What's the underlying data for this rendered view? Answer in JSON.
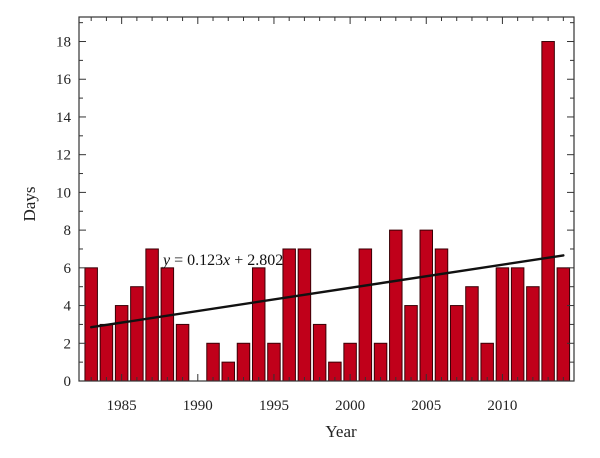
{
  "chart_data": {
    "type": "bar",
    "x": [
      1983,
      1984,
      1985,
      1986,
      1987,
      1988,
      1989,
      1990,
      1991,
      1992,
      1993,
      1994,
      1995,
      1996,
      1997,
      1998,
      1999,
      2000,
      2001,
      2002,
      2003,
      2004,
      2005,
      2006,
      2007,
      2008,
      2009,
      2010,
      2011,
      2012,
      2013,
      2014
    ],
    "values": [
      6,
      3,
      4,
      5,
      7,
      6,
      3,
      0,
      2,
      1,
      2,
      6,
      2,
      7,
      7,
      3,
      1,
      2,
      7,
      2,
      8,
      4,
      8,
      7,
      4,
      5,
      2,
      6,
      6,
      5,
      18,
      6
    ],
    "xlabel": "Year",
    "ylabel": "Days",
    "xlim": [
      1982.2,
      2014.7
    ],
    "ylim": [
      0,
      19.3
    ],
    "xticks": [
      1985,
      1990,
      1995,
      2000,
      2005,
      2010
    ],
    "yticks": [
      0,
      2,
      4,
      6,
      8,
      10,
      12,
      14,
      16,
      18
    ],
    "trendline": {
      "equation_prefix": "y",
      "equation_rest": " = 0.123",
      "equation_x": "x",
      "equation_tail": " + 2.802",
      "x_start": 1983,
      "x_end": 2014,
      "y_start": 2.85,
      "y_end": 6.66
    },
    "bar_color": "#c0001a",
    "grid": false
  }
}
